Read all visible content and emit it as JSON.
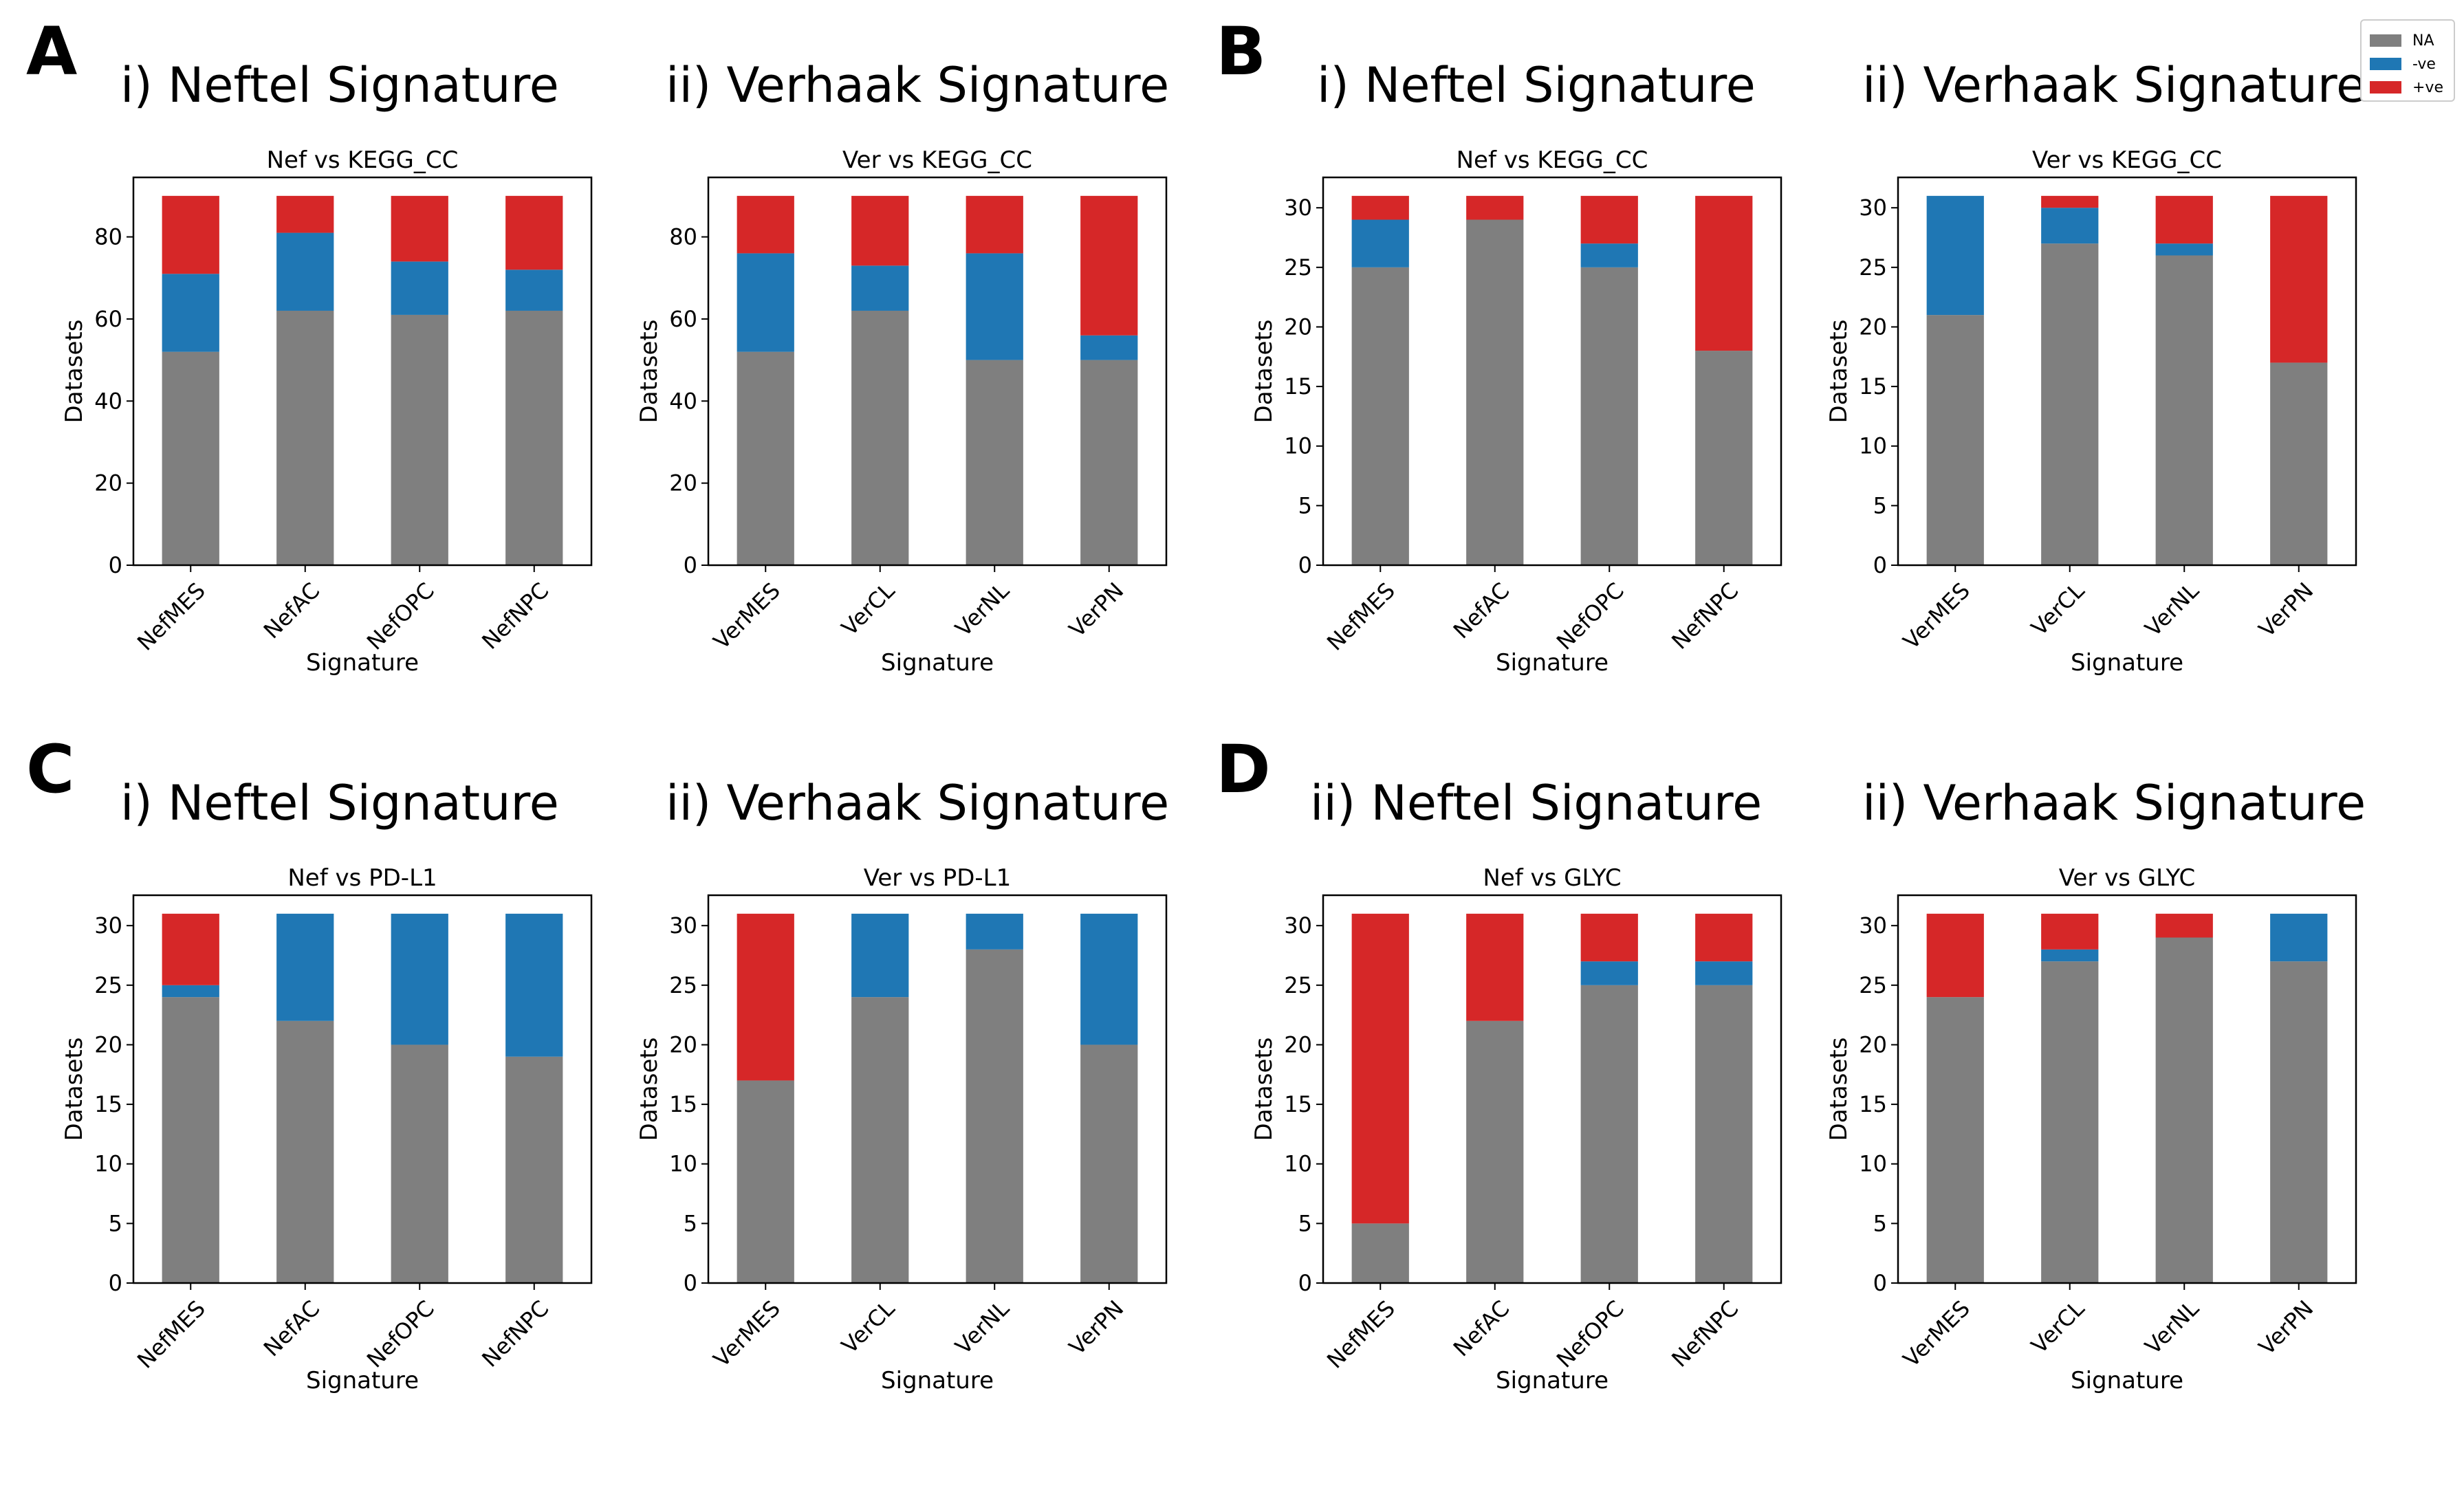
{
  "legend": [
    {
      "label": "NA",
      "color": "#7f7f7f"
    },
    {
      "label": "-ve",
      "color": "#1f77b4"
    },
    {
      "label": "+ve",
      "color": "#d62728"
    }
  ],
  "panels": [
    {
      "letter": "A",
      "sub_titles": [
        "i) Neftel Signature",
        "ii) Verhaak Signature"
      ]
    },
    {
      "letter": "B",
      "sub_titles": [
        "i) Neftel Signature",
        "ii) Verhaak Signature"
      ]
    },
    {
      "letter": "C",
      "sub_titles": [
        "i) Neftel Signature",
        "ii) Verhaak Signature"
      ]
    },
    {
      "letter": "D",
      "sub_titles": [
        "ii) Neftel Signature",
        "ii) Verhaak Signature"
      ]
    }
  ],
  "chart_data": [
    {
      "type": "bar",
      "stacked": true,
      "panel": "A",
      "title": "Nef vs KEGG_CC",
      "xlabel": "Signature",
      "ylabel": "Datasets",
      "ylim": [
        0,
        94.5
      ],
      "yticks": [
        0,
        20,
        40,
        60,
        80
      ],
      "categories": [
        "NefMES",
        "NefAC",
        "NefOPC",
        "NefNPC"
      ],
      "series": [
        {
          "name": "NA",
          "values": [
            52,
            62,
            61,
            62
          ]
        },
        {
          "name": "-ve",
          "values": [
            19,
            19,
            13,
            10
          ]
        },
        {
          "name": "+ve",
          "values": [
            19,
            9,
            16,
            18
          ]
        }
      ]
    },
    {
      "type": "bar",
      "stacked": true,
      "panel": "A",
      "title": "Ver vs KEGG_CC",
      "xlabel": "Signature",
      "ylabel": "Datasets",
      "ylim": [
        0,
        94.5
      ],
      "yticks": [
        0,
        20,
        40,
        60,
        80
      ],
      "categories": [
        "VerMES",
        "VerCL",
        "VerNL",
        "VerPN"
      ],
      "series": [
        {
          "name": "NA",
          "values": [
            52,
            62,
            50,
            50
          ]
        },
        {
          "name": "-ve",
          "values": [
            24,
            11,
            26,
            6
          ]
        },
        {
          "name": "+ve",
          "values": [
            14,
            17,
            14,
            34
          ]
        }
      ]
    },
    {
      "type": "bar",
      "stacked": true,
      "panel": "B",
      "title": "Nef vs KEGG_CC",
      "xlabel": "Signature",
      "ylabel": "Datasets",
      "ylim": [
        0,
        32.55
      ],
      "yticks": [
        0,
        5,
        10,
        15,
        20,
        25,
        30
      ],
      "categories": [
        "NefMES",
        "NefAC",
        "NefOPC",
        "NefNPC"
      ],
      "series": [
        {
          "name": "NA",
          "values": [
            25,
            29,
            25,
            18
          ]
        },
        {
          "name": "-ve",
          "values": [
            4,
            0,
            2,
            0
          ]
        },
        {
          "name": "+ve",
          "values": [
            2,
            2,
            4,
            13
          ]
        }
      ]
    },
    {
      "type": "bar",
      "stacked": true,
      "panel": "B",
      "title": "Ver vs KEGG_CC",
      "xlabel": "Signature",
      "ylabel": "Datasets",
      "ylim": [
        0,
        32.55
      ],
      "yticks": [
        0,
        5,
        10,
        15,
        20,
        25,
        30
      ],
      "categories": [
        "VerMES",
        "VerCL",
        "VerNL",
        "VerPN"
      ],
      "series": [
        {
          "name": "NA",
          "values": [
            21,
            27,
            26,
            17
          ]
        },
        {
          "name": "-ve",
          "values": [
            10,
            3,
            1,
            0
          ]
        },
        {
          "name": "+ve",
          "values": [
            0,
            1,
            4,
            14
          ]
        }
      ]
    },
    {
      "type": "bar",
      "stacked": true,
      "panel": "C",
      "title": "Nef vs PD-L1",
      "xlabel": "Signature",
      "ylabel": "Datasets",
      "ylim": [
        0,
        32.55
      ],
      "yticks": [
        0,
        5,
        10,
        15,
        20,
        25,
        30
      ],
      "categories": [
        "NefMES",
        "NefAC",
        "NefOPC",
        "NefNPC"
      ],
      "series": [
        {
          "name": "NA",
          "values": [
            24,
            22,
            20,
            19
          ]
        },
        {
          "name": "-ve",
          "values": [
            1,
            9,
            11,
            12
          ]
        },
        {
          "name": "+ve",
          "values": [
            6,
            0,
            0,
            0
          ]
        }
      ]
    },
    {
      "type": "bar",
      "stacked": true,
      "panel": "C",
      "title": "Ver vs PD-L1",
      "xlabel": "Signature",
      "ylabel": "Datasets",
      "ylim": [
        0,
        32.55
      ],
      "yticks": [
        0,
        5,
        10,
        15,
        20,
        25,
        30
      ],
      "categories": [
        "VerMES",
        "VerCL",
        "VerNL",
        "VerPN"
      ],
      "series": [
        {
          "name": "NA",
          "values": [
            17,
            24,
            28,
            20
          ]
        },
        {
          "name": "-ve",
          "values": [
            0,
            7,
            3,
            11
          ]
        },
        {
          "name": "+ve",
          "values": [
            14,
            0,
            0,
            0
          ]
        }
      ]
    },
    {
      "type": "bar",
      "stacked": true,
      "panel": "D",
      "title": "Nef vs GLYC",
      "xlabel": "Signature",
      "ylabel": "Datasets",
      "ylim": [
        0,
        32.55
      ],
      "yticks": [
        0,
        5,
        10,
        15,
        20,
        25,
        30
      ],
      "categories": [
        "NefMES",
        "NefAC",
        "NefOPC",
        "NefNPC"
      ],
      "series": [
        {
          "name": "NA",
          "values": [
            5,
            22,
            25,
            25
          ]
        },
        {
          "name": "-ve",
          "values": [
            0,
            0,
            2,
            2
          ]
        },
        {
          "name": "+ve",
          "values": [
            26,
            9,
            4,
            4
          ]
        }
      ]
    },
    {
      "type": "bar",
      "stacked": true,
      "panel": "D",
      "title": "Ver vs GLYC",
      "xlabel": "Signature",
      "ylabel": "Datasets",
      "ylim": [
        0,
        32.55
      ],
      "yticks": [
        0,
        5,
        10,
        15,
        20,
        25,
        30
      ],
      "categories": [
        "VerMES",
        "VerCL",
        "VerNL",
        "VerPN"
      ],
      "series": [
        {
          "name": "NA",
          "values": [
            24,
            27,
            29,
            27
          ]
        },
        {
          "name": "-ve",
          "values": [
            0,
            1,
            0,
            4
          ]
        },
        {
          "name": "+ve",
          "values": [
            7,
            3,
            2,
            0
          ]
        }
      ]
    }
  ]
}
